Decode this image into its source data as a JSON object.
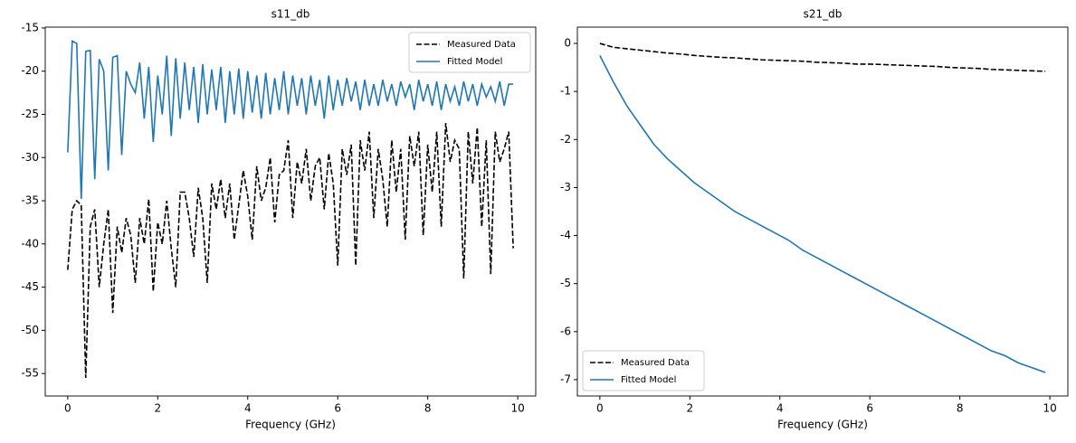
{
  "chart_data": [
    {
      "type": "line",
      "title": "s11_db",
      "xlabel": "Frequency (GHz)",
      "legend": "upper right",
      "x": [
        0,
        0.1,
        0.2,
        0.3,
        0.4,
        0.5,
        0.6,
        0.7,
        0.8,
        0.9,
        1,
        1.1,
        1.2,
        1.3,
        1.4,
        1.5,
        1.6,
        1.7,
        1.8,
        1.9,
        2,
        2.1,
        2.2,
        2.3,
        2.4,
        2.5,
        2.6,
        2.7,
        2.8,
        2.9,
        3,
        3.1,
        3.2,
        3.3,
        3.4,
        3.5,
        3.6,
        3.7,
        3.8,
        3.9,
        4,
        4.1,
        4.2,
        4.3,
        4.4,
        4.5,
        4.6,
        4.7,
        4.8,
        4.9,
        5,
        5.1,
        5.2,
        5.3,
        5.4,
        5.5,
        5.6,
        5.7,
        5.8,
        5.9,
        6,
        6.1,
        6.2,
        6.3,
        6.4,
        6.5,
        6.6,
        6.7,
        6.8,
        6.9,
        7,
        7.1,
        7.2,
        7.3,
        7.4,
        7.5,
        7.6,
        7.7,
        7.8,
        7.9,
        8,
        8.1,
        8.2,
        8.3,
        8.4,
        8.5,
        8.6,
        8.7,
        8.8,
        8.9,
        9,
        9.1,
        9.2,
        9.3,
        9.4,
        9.5,
        9.6,
        9.7,
        9.8,
        9.9
      ],
      "series": [
        {
          "name": "Measured Data",
          "color": "#000000",
          "linestyle": "dashed",
          "values": [
            -43,
            -36,
            -35,
            -35.5,
            -55.5,
            -38,
            -36,
            -45,
            -40,
            -36,
            -48,
            -38,
            -41,
            -37,
            -39,
            -44.5,
            -37,
            -40,
            -34.8,
            -45.5,
            -37.5,
            -40,
            -35,
            -40.5,
            -45,
            -34,
            -34,
            -37,
            -41.5,
            -33.5,
            -37,
            -44.5,
            -33,
            -36,
            -32.5,
            -37,
            -33,
            -39.5,
            -35.5,
            -31.5,
            -34.5,
            -39.5,
            -31,
            -35,
            -33.5,
            -30,
            -37.5,
            -32,
            -31.5,
            -28,
            -37,
            -30.5,
            -33,
            -29,
            -35,
            -31,
            -30,
            -36,
            -29.5,
            -33,
            -42.5,
            -29,
            -32,
            -28.5,
            -42.5,
            -28,
            -31.5,
            -27,
            -37,
            -29,
            -32.5,
            -38,
            -28,
            -34,
            -29,
            -39.5,
            -27.5,
            -31,
            -27,
            -39,
            -28.5,
            -34,
            -27,
            -38,
            -26,
            -30.5,
            -28,
            -29,
            -44,
            -27,
            -33,
            -26.5,
            -38,
            -28,
            -43.5,
            -27,
            -30.5,
            -29,
            -27,
            -40.5
          ]
        },
        {
          "name": "Fitted Model",
          "color": "#1f77b4",
          "linestyle": "solid",
          "values": [
            -29.4,
            -16.5,
            -16.8,
            -34.8,
            -17.7,
            -17.6,
            -32.5,
            -18.6,
            -20,
            -31.5,
            -18.4,
            -18.2,
            -29.7,
            -20,
            -21.5,
            -22.5,
            -19,
            -25.5,
            -19.5,
            -28.2,
            -20.5,
            -25,
            -18.2,
            -27.5,
            -18.5,
            -25.5,
            -19,
            -24.5,
            -19.5,
            -26,
            -19.2,
            -25,
            -19.8,
            -24.5,
            -19.5,
            -26,
            -20,
            -25,
            -19.7,
            -25.5,
            -20,
            -24.8,
            -20.5,
            -25.5,
            -20.2,
            -25,
            -20.8,
            -24.5,
            -20,
            -25,
            -20.5,
            -24,
            -20.8,
            -25,
            -20.5,
            -24,
            -21,
            -25.5,
            -20.5,
            -24.5,
            -21,
            -24,
            -20.8,
            -23.5,
            -21.2,
            -24.5,
            -21,
            -24,
            -21.5,
            -24,
            -21,
            -23.5,
            -21.5,
            -24,
            -21.2,
            -23,
            -21.5,
            -24.5,
            -21,
            -23.5,
            -21.5,
            -24,
            -21.2,
            -24.5,
            -21.5,
            -23.5,
            -21.8,
            -24,
            -21.2,
            -23.5,
            -21.5,
            -24,
            -21.5,
            -23,
            -21.8,
            -23.5,
            -21.2,
            -24,
            -21.5,
            -21.5
          ]
        }
      ],
      "xlim": [
        -0.5,
        10.4
      ],
      "xticks": [
        0,
        2,
        4,
        6,
        8,
        10
      ],
      "ylim": [
        -57.6,
        -14.9
      ],
      "yticks": [
        -55,
        -50,
        -45,
        -40,
        -35,
        -30,
        -25,
        -20,
        -15
      ]
    },
    {
      "type": "line",
      "title": "s21_db",
      "xlabel": "Frequency (GHz)",
      "legend": "lower left",
      "x": [
        0,
        0.3,
        0.6,
        0.9,
        1.2,
        1.5,
        1.8,
        2.1,
        2.4,
        2.7,
        3,
        3.3,
        3.6,
        3.9,
        4.2,
        4.5,
        4.8,
        5.1,
        5.4,
        5.7,
        6,
        6.3,
        6.6,
        6.9,
        7.2,
        7.5,
        7.8,
        8.1,
        8.4,
        8.7,
        9,
        9.3,
        9.6,
        9.9
      ],
      "series": [
        {
          "name": "Measured Data",
          "color": "#000000",
          "linestyle": "dashed",
          "values": [
            0,
            -0.08,
            -0.11,
            -0.14,
            -0.17,
            -0.2,
            -0.22,
            -0.25,
            -0.27,
            -0.29,
            -0.3,
            -0.32,
            -0.34,
            -0.35,
            -0.36,
            -0.37,
            -0.39,
            -0.4,
            -0.41,
            -0.43,
            -0.43,
            -0.44,
            -0.45,
            -0.46,
            -0.47,
            -0.48,
            -0.5,
            -0.51,
            -0.52,
            -0.54,
            -0.55,
            -0.56,
            -0.57,
            -0.58
          ]
        },
        {
          "name": "Fitted Model",
          "color": "#1f77b4",
          "linestyle": "solid",
          "values": [
            -0.25,
            -0.8,
            -1.3,
            -1.7,
            -2.1,
            -2.4,
            -2.65,
            -2.9,
            -3.1,
            -3.3,
            -3.5,
            -3.65,
            -3.8,
            -3.95,
            -4.1,
            -4.3,
            -4.45,
            -4.6,
            -4.75,
            -4.9,
            -5.05,
            -5.2,
            -5.35,
            -5.5,
            -5.65,
            -5.8,
            -5.95,
            -6.1,
            -6.25,
            -6.4,
            -6.5,
            -6.65,
            -6.75,
            -6.85
          ]
        }
      ],
      "xlim": [
        -0.5,
        10.4
      ],
      "xticks": [
        0,
        2,
        4,
        6,
        8,
        10
      ],
      "ylim": [
        -7.34,
        0.34
      ],
      "yticks": [
        -7,
        -6,
        -5,
        -4,
        -3,
        -2,
        -1,
        0
      ]
    }
  ]
}
